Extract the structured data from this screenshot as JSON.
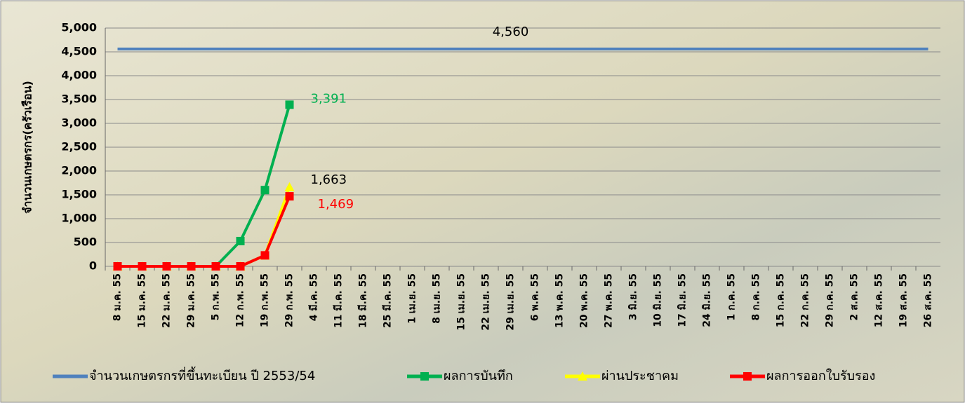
{
  "chart_data": {
    "type": "line",
    "y_label": "จำนวนเกษตรกร(ครัวเรือน)",
    "categories": [
      "8 ม.ค. 55",
      "15 ม.ค. 55",
      "22 ม.ค. 55",
      "29 ม.ค. 55",
      "5 ก.พ. 55",
      "12 ก.พ. 55",
      "19 ก.พ. 55",
      "29 ก.พ. 55",
      "4 มี.ค. 55",
      "11 มี.ค. 55",
      "18 มี.ค. 55",
      "25 มี.ค. 55",
      "1 เม.ย. 55",
      "8 เม.ย. 55",
      "15 เม.ย. 55",
      "22 เม.ย. 55",
      "29 เม.ย. 55",
      "6 พ.ค. 55",
      "13 พ.ค. 55",
      "20 พ.ค. 55",
      "27 พ.ค. 55",
      "3 มิ.ย. 55",
      "10 มิ.ย. 55",
      "17 มิ.ย. 55",
      "24 มิ.ย. 55",
      "1 ก.ค. 55",
      "8 ก.ค. 55",
      "15 ก.ค. 55",
      "22 ก.ค. 55",
      "29 ก.ค. 55",
      "2 ส.ค. 55",
      "12 ส.ค. 55",
      "19 ส.ค. 55",
      "26 ส.ค. 55"
    ],
    "ylim": [
      0,
      5000
    ],
    "yticks": [
      0,
      500,
      {
        "value": 1000,
        "label": "1,000"
      },
      {
        "value": 1500,
        "label": "1,500"
      },
      {
        "value": 2000,
        "label": "2,000"
      },
      {
        "value": 2500,
        "label": "2,500"
      },
      {
        "value": 3000,
        "label": "3,000"
      },
      {
        "value": 3500,
        "label": "3,500"
      },
      {
        "value": 4000,
        "label": "4,000"
      },
      {
        "value": 4500,
        "label": "4,500"
      },
      {
        "value": 5000,
        "label": "5,000"
      }
    ],
    "grid": true,
    "legend": "bottom",
    "series": [
      {
        "name": "จำนวนเกษตรกรที่ขึ้นทะเบียน ปี 2553/54",
        "color": "#4f81bd",
        "marker": "none",
        "label_color": "#000000",
        "values": [
          4560,
          4560,
          4560,
          4560,
          4560,
          4560,
          4560,
          4560,
          4560,
          4560,
          4560,
          4560,
          4560,
          4560,
          4560,
          4560,
          4560,
          4560,
          4560,
          4560,
          4560,
          4560,
          4560,
          4560,
          4560,
          4560,
          4560,
          4560,
          4560,
          4560,
          4560,
          4560,
          4560,
          4560
        ],
        "value_labels": [
          null,
          null,
          null,
          null,
          null,
          null,
          null,
          null,
          null,
          null,
          null,
          null,
          null,
          null,
          null,
          null,
          "4,560",
          null,
          null,
          null,
          null,
          null,
          null,
          null,
          null,
          null,
          null,
          null,
          null,
          null,
          null,
          null,
          null,
          null
        ]
      },
      {
        "name": "ผลการบันทึก",
        "color": "#00b050",
        "marker": "square",
        "label_color": "#00b050",
        "values": [
          0,
          0,
          0,
          0,
          0,
          530,
          1600,
          3391,
          null,
          null,
          null,
          null,
          null,
          null,
          null,
          null,
          null,
          null,
          null,
          null,
          null,
          null,
          null,
          null,
          null,
          null,
          null,
          null,
          null,
          null,
          null,
          null,
          null,
          null
        ],
        "value_labels": [
          null,
          null,
          null,
          null,
          null,
          null,
          null,
          "3,391",
          null,
          null,
          null,
          null,
          null,
          null,
          null,
          null,
          null,
          null,
          null,
          null,
          null,
          null,
          null,
          null,
          null,
          null,
          null,
          null,
          null,
          null,
          null,
          null,
          null,
          null
        ]
      },
      {
        "name": "ผ่านประชาคม",
        "color": "#ffff00",
        "marker": "triangle",
        "label_color": "#000000",
        "values": [
          0,
          0,
          0,
          0,
          0,
          0,
          230,
          1663,
          null,
          null,
          null,
          null,
          null,
          null,
          null,
          null,
          null,
          null,
          null,
          null,
          null,
          null,
          null,
          null,
          null,
          null,
          null,
          null,
          null,
          null,
          null,
          null,
          null,
          null
        ],
        "value_labels": [
          null,
          null,
          null,
          null,
          null,
          null,
          null,
          "1,663",
          null,
          null,
          null,
          null,
          null,
          null,
          null,
          null,
          null,
          null,
          null,
          null,
          null,
          null,
          null,
          null,
          null,
          null,
          null,
          null,
          null,
          null,
          null,
          null,
          null,
          null
        ]
      },
      {
        "name": "ผลการออกใบรับรอง",
        "color": "#ff0000",
        "marker": "square",
        "label_color": "#ff0000",
        "values": [
          0,
          0,
          0,
          0,
          0,
          0,
          230,
          1469,
          null,
          null,
          null,
          null,
          null,
          null,
          null,
          null,
          null,
          null,
          null,
          null,
          null,
          null,
          null,
          null,
          null,
          null,
          null,
          null,
          null,
          null,
          null,
          null,
          null,
          null
        ],
        "value_labels": [
          null,
          null,
          null,
          null,
          null,
          null,
          null,
          "1,469",
          null,
          null,
          null,
          null,
          null,
          null,
          null,
          null,
          null,
          null,
          null,
          null,
          null,
          null,
          null,
          null,
          null,
          null,
          null,
          null,
          null,
          null,
          null,
          null,
          null,
          null
        ]
      }
    ]
  }
}
